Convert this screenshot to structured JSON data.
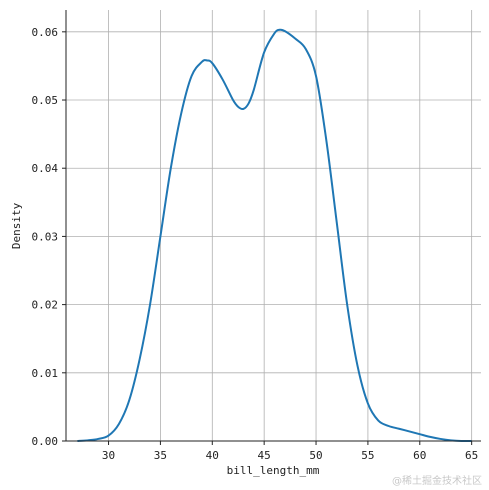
{
  "chart_data": {
    "type": "line",
    "xlabel": "bill_length_mm",
    "ylabel": "Density",
    "xlim": [
      25.9,
      65.9
    ],
    "ylim": [
      0,
      0.0632
    ],
    "xticks": [
      30,
      35,
      40,
      45,
      50,
      55,
      60,
      65
    ],
    "yticks": [
      0.0,
      0.01,
      0.02,
      0.03,
      0.04,
      0.05,
      0.06
    ],
    "ytick_labels": [
      "0.00",
      "0.01",
      "0.02",
      "0.03",
      "0.04",
      "0.05",
      "0.06"
    ],
    "grid": true,
    "series": [
      {
        "color": "#1f77b4",
        "x": [
          27,
          28,
          29,
          30,
          31,
          32,
          33,
          34,
          35,
          36,
          37,
          38,
          39,
          39.5,
          40,
          41,
          42,
          42.5,
          43,
          43.5,
          44,
          45,
          46,
          46.5,
          47,
          48,
          49,
          50,
          51,
          52,
          53,
          54,
          55,
          56,
          57,
          58,
          59,
          60,
          61,
          62,
          63,
          64,
          65
        ],
        "y": [
          0.0,
          0.0001,
          0.0003,
          0.0008,
          0.0025,
          0.006,
          0.012,
          0.02,
          0.03,
          0.04,
          0.048,
          0.0535,
          0.0556,
          0.0558,
          0.0554,
          0.053,
          0.05,
          0.049,
          0.0487,
          0.0495,
          0.0515,
          0.057,
          0.0598,
          0.0603,
          0.0601,
          0.059,
          0.0575,
          0.0535,
          0.044,
          0.032,
          0.02,
          0.011,
          0.0055,
          0.003,
          0.0022,
          0.0018,
          0.0014,
          0.001,
          0.0006,
          0.0003,
          0.0001,
          0.0,
          0.0
        ]
      }
    ]
  },
  "watermark": "@稀土掘金技术社区"
}
